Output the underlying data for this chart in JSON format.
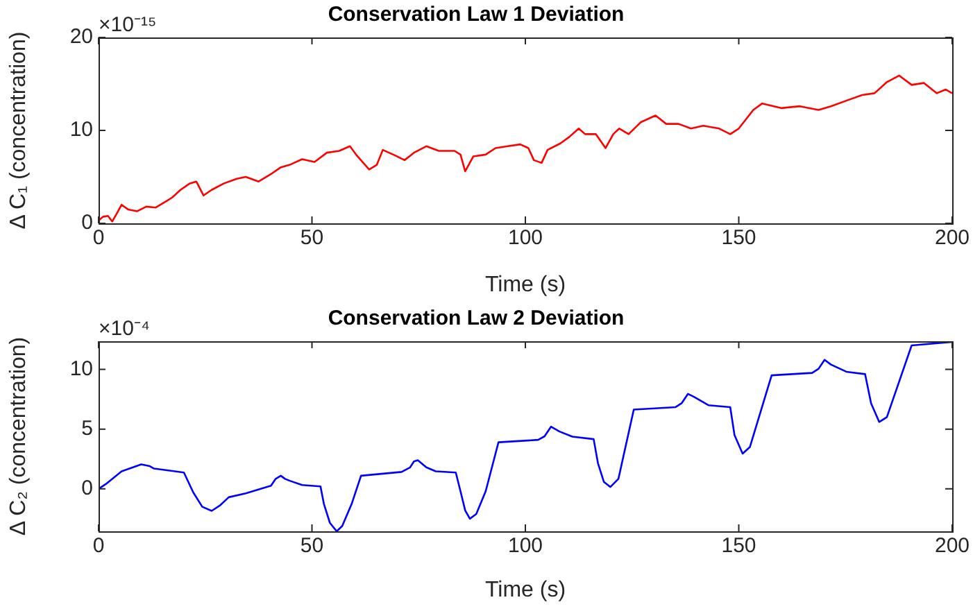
{
  "chart_data": [
    {
      "type": "line",
      "title": "Conservation Law 1 Deviation",
      "xlabel": "Time (s)",
      "ylabel": "Δ C₁ (concentration)",
      "annotations": [
        "×10⁻¹⁵"
      ],
      "grid": false,
      "x": [
        0,
        1,
        2.2,
        3.2,
        4.2,
        5.4,
        6.9,
        9,
        11.2,
        13.4,
        15.6,
        17.3,
        19.2,
        21.4,
        22.9,
        24.6,
        26.5,
        29.4,
        32.4,
        34.5,
        37.5,
        40.4,
        42.6,
        44.8,
        47.7,
        50.6,
        53.5,
        56.4,
        58.9,
        60.5,
        63.4,
        65.2,
        66.6,
        69.5,
        71.7,
        73.9,
        76.8,
        79.7,
        83.4,
        84.8,
        85.9,
        87.8,
        90.7,
        93,
        95.9,
        98.8,
        100.7,
        102,
        103.8,
        105.2,
        108.2,
        110.3,
        112.5,
        114,
        116.5,
        118.8,
        120.6,
        122,
        124.2,
        127.1,
        130.5,
        133,
        135.9,
        138.8,
        141.7,
        145.4,
        148,
        150,
        153.4,
        155.5,
        159.9,
        164.3,
        168.7,
        171.6,
        175.2,
        178.9,
        181.8,
        184.7,
        187.6,
        190.5,
        193.4,
        196.4,
        198.5,
        200
      ],
      "series": [
        {
          "color": "#ff0000",
          "values": [
            0.3,
            0.7,
            0.8,
            0.2,
            1.0,
            2.0,
            1.5,
            1.3,
            1.8,
            1.7,
            2.3,
            2.8,
            3.6,
            4.3,
            4.5,
            3.0,
            3.6,
            4.3,
            4.8,
            5.0,
            4.5,
            5.3,
            6.0,
            6.3,
            6.9,
            6.6,
            7.6,
            7.8,
            8.3,
            7.3,
            5.8,
            6.3,
            7.9,
            7.3,
            6.8,
            7.6,
            8.3,
            7.8,
            7.8,
            7.4,
            5.6,
            7.2,
            7.4,
            8.1,
            8.3,
            8.5,
            8.1,
            6.8,
            6.5,
            7.9,
            8.6,
            9.3,
            10.2,
            9.6,
            9.6,
            8.1,
            9.6,
            10.2,
            9.6,
            10.9,
            11.6,
            10.7,
            10.7,
            10.2,
            10.5,
            10.2,
            9.6,
            10.2,
            12.2,
            12.9,
            12.4,
            12.6,
            12.2,
            12.6,
            13.2,
            13.8,
            14.0,
            15.2,
            15.9,
            14.9,
            15.1,
            14.0,
            14.4,
            14.0
          ]
        }
      ],
      "xlim": [
        0,
        200
      ],
      "xticks": [
        0,
        50,
        100,
        150,
        200
      ],
      "ylim": [
        0,
        20
      ],
      "yticks": [
        0,
        10,
        20
      ]
    },
    {
      "type": "line",
      "title": "Conservation Law 2 Deviation",
      "xlabel": "Time (s)",
      "ylabel": "Δ C₂ (concentration)",
      "annotations": [
        "×10⁻⁴"
      ],
      "grid": false,
      "x": [
        0,
        1.7,
        5.4,
        10,
        12,
        13,
        20,
        22.2,
        24.3,
        26.5,
        28.4,
        30.5,
        34.5,
        40.4,
        41.5,
        42.7,
        43.7,
        44.8,
        47.7,
        52,
        52.8,
        54.2,
        55.8,
        57.1,
        59.3,
        61.5,
        71,
        73,
        73.9,
        74.8,
        76.8,
        79,
        83.7,
        84.8,
        85.9,
        87,
        88.5,
        90.7,
        93.7,
        103,
        104.5,
        106,
        108,
        111,
        116,
        117,
        118.4,
        119.9,
        121.8,
        125.4,
        135.2,
        136.6,
        138.1,
        139.5,
        142.9,
        148,
        149,
        150.9,
        152.6,
        157.7,
        167.2,
        168.7,
        170.1,
        171.6,
        175.2,
        179.6,
        181,
        182.9,
        184.7,
        190.5,
        200
      ],
      "series": [
        {
          "color": "#0000ff",
          "values": [
            0,
            0.4,
            1.47,
            2.05,
            1.9,
            1.7,
            1.37,
            -0.3,
            -1.5,
            -1.84,
            -1.4,
            -0.7,
            -0.37,
            0.26,
            0.84,
            1.1,
            0.84,
            0.68,
            0.32,
            0.21,
            -1.26,
            -2.84,
            -3.55,
            -3.1,
            -1.26,
            1.1,
            1.42,
            1.8,
            2.3,
            2.4,
            1.8,
            1.47,
            1.37,
            -0.2,
            -1.8,
            -2.5,
            -2.1,
            -0.2,
            3.9,
            4.1,
            4.4,
            5.2,
            4.8,
            4.37,
            4.16,
            2.16,
            0.58,
            0.16,
            0.84,
            6.63,
            6.84,
            7.16,
            7.95,
            7.7,
            7.0,
            6.84,
            4.5,
            2.95,
            3.5,
            9.5,
            9.7,
            10.05,
            10.8,
            10.4,
            9.8,
            9.6,
            7.16,
            5.6,
            6.0,
            12.0,
            12.3
          ]
        }
      ],
      "xlim": [
        0,
        200
      ],
      "xticks": [
        0,
        50,
        100,
        150,
        200
      ],
      "ylim": [
        -3.55,
        12.35
      ],
      "yticks": [
        0,
        5,
        10
      ]
    }
  ]
}
